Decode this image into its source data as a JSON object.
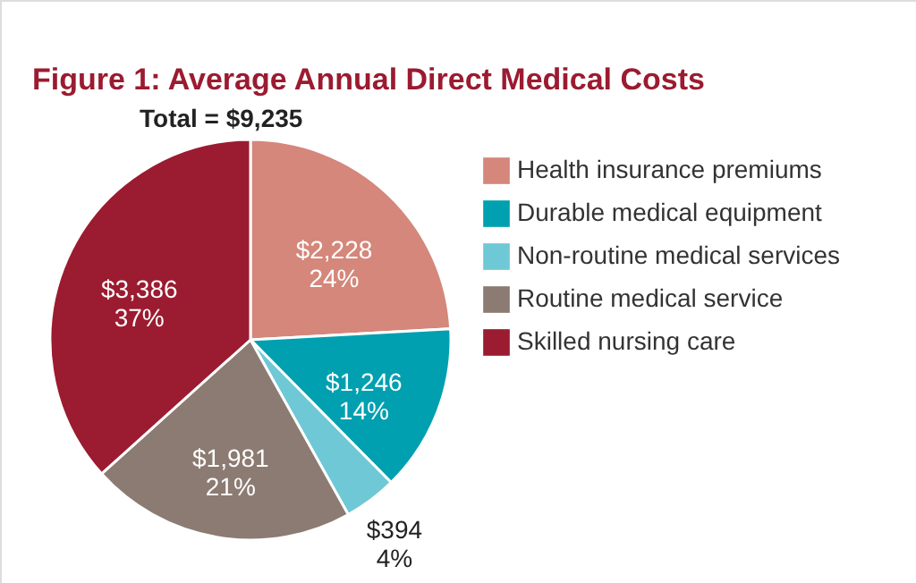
{
  "chart_data": {
    "type": "pie",
    "title": "Figure 1: Average Annual Direct Medical Costs",
    "subtitle": "Total = $9,235",
    "categories": [
      "Health insurance premiums",
      "Durable medical equipment",
      "Non-routine medical services",
      "Routine medical service",
      "Skilled nursing care"
    ],
    "values": [
      2228,
      1246,
      394,
      1981,
      3386
    ],
    "value_labels": [
      "$2,228\n24%",
      "$1,246\n14%",
      "$394\n4%",
      "$1,981\n21%",
      "$3,386\n37%"
    ],
    "colors": [
      "#d4877a",
      "#00a0b0",
      "#6fc8d6",
      "#8c7b72",
      "#9b1b30"
    ],
    "legend": "right"
  }
}
